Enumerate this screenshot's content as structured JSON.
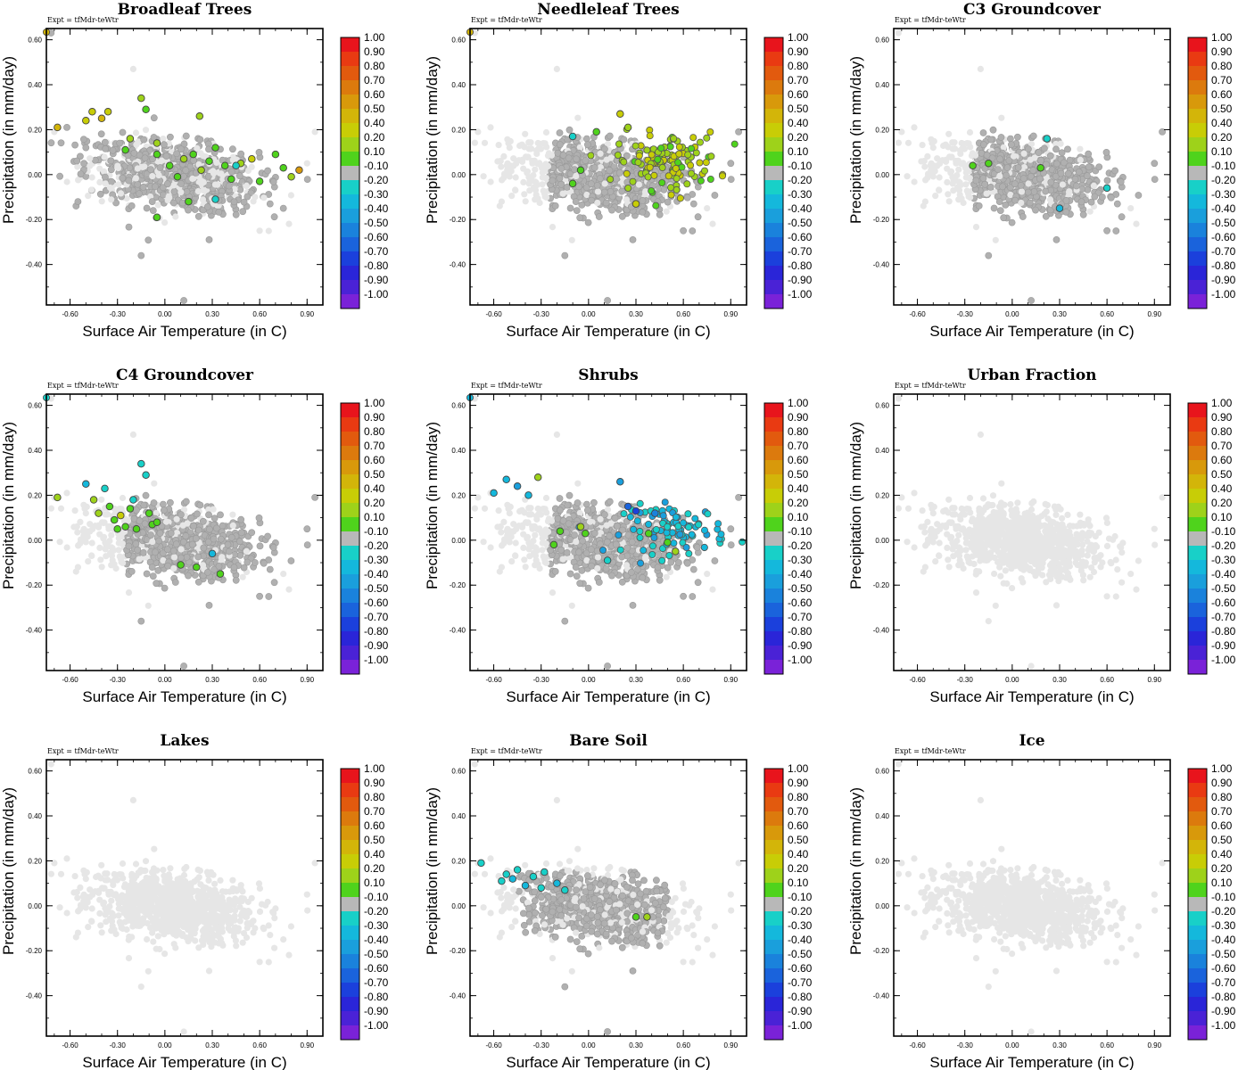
{
  "figure": {
    "experiment_label": "Expt = tfMdr-teWtr"
  },
  "colorbar": {
    "labels": [
      "1.00",
      "0.90",
      "0.80",
      "0.70",
      "0.60",
      "0.50",
      "0.40",
      "0.20",
      "0.10",
      "-0.10",
      "-0.20",
      "-0.30",
      "-0.40",
      "-0.50",
      "-0.60",
      "-0.70",
      "-0.80",
      "-0.90",
      "-1.00"
    ],
    "colors": [
      "#e8141c",
      "#e93a12",
      "#e25a0e",
      "#dc7a0d",
      "#d8990b",
      "#d3b509",
      "#c8cd06",
      "#9ed21a",
      "#4fd31c",
      "#b8b8b8",
      "#18d0c8",
      "#14b8dc",
      "#1a9fdc",
      "#1a82dc",
      "#1a63dc",
      "#1b40dc",
      "#2a25d8",
      "#4a22d6",
      "#7a22d8"
    ]
  },
  "chart_data": [
    {
      "type": "scatter",
      "title": "Broadleaf Trees",
      "xlabel": "Surface Air Temperature (in C)",
      "ylabel": "Precipitation (in mm/day)",
      "xlim": [
        -0.75,
        1.0
      ],
      "ylim": [
        -0.58,
        0.65
      ],
      "xticks": [
        "-0.60",
        "-0.30",
        "0.00",
        "0.30",
        "0.60",
        "0.90"
      ],
      "yticks": [
        "0.60",
        "0.40",
        "0.20",
        "0.00",
        "-0.20",
        "-0.40"
      ],
      "mode": "scattered",
      "extreme": false,
      "colored_points": [
        [
          -0.68,
          0.21,
          0.45
        ],
        [
          -0.5,
          0.24,
          0.4
        ],
        [
          -0.46,
          0.28,
          0.4
        ],
        [
          -0.4,
          0.25,
          0.45
        ],
        [
          -0.36,
          0.28,
          0.35
        ],
        [
          -0.22,
          0.16,
          0.3
        ],
        [
          -0.15,
          0.34,
          0.2
        ],
        [
          -0.12,
          0.29,
          0.15
        ],
        [
          -0.05,
          0.14,
          0.3
        ],
        [
          -0.05,
          0.09,
          0.15
        ],
        [
          0.03,
          0.04,
          0.15
        ],
        [
          0.08,
          -0.01,
          0.15
        ],
        [
          0.12,
          0.07,
          0.2
        ],
        [
          0.18,
          0.09,
          0.15
        ],
        [
          0.23,
          0.02,
          0.3
        ],
        [
          0.28,
          0.06,
          0.15
        ],
        [
          0.32,
          0.12,
          0.15
        ],
        [
          0.38,
          0.04,
          0.15
        ],
        [
          0.42,
          -0.02,
          0.15
        ],
        [
          0.48,
          0.05,
          0.25
        ],
        [
          0.55,
          0.07,
          0.35
        ],
        [
          0.6,
          -0.03,
          0.15
        ],
        [
          0.7,
          0.09,
          0.15
        ],
        [
          0.75,
          0.03,
          0.15
        ],
        [
          0.8,
          -0.01,
          0.2
        ],
        [
          0.85,
          0.02,
          0.6
        ],
        [
          0.32,
          -0.11,
          -0.25
        ],
        [
          0.45,
          0.04,
          -0.25
        ],
        [
          -0.05,
          -0.19,
          0.15
        ],
        [
          0.15,
          -0.12,
          0.15
        ],
        [
          0.22,
          0.26,
          0.2
        ],
        [
          -0.25,
          0.11,
          0.15
        ]
      ]
    },
    {
      "type": "scatter",
      "title": "Needleleaf Trees",
      "xlabel": "Surface Air Temperature (in C)",
      "ylabel": "Precipitation (in mm/day)",
      "xlim": [
        -0.75,
        1.0
      ],
      "ylim": [
        -0.58,
        0.65
      ],
      "xticks": [
        "-0.60",
        "-0.30",
        "0.00",
        "0.30",
        "0.60",
        "0.90"
      ],
      "yticks": [
        "0.60",
        "0.40",
        "0.20",
        "0.00",
        "-0.20",
        "-0.40"
      ],
      "mode": "main_gray",
      "extreme": false,
      "cluster": {
        "xc": 0.5,
        "yc": 0.06,
        "sx": 0.18,
        "sy": 0.07,
        "n": 120,
        "values": [
          0.15,
          0.2,
          0.25,
          0.3,
          0.35,
          0.4
        ]
      },
      "colored_points": [
        [
          -0.05,
          0.02,
          0.15
        ],
        [
          0.2,
          0.27,
          0.4
        ],
        [
          0.25,
          0.21,
          0.3
        ],
        [
          0.05,
          0.19,
          0.15
        ],
        [
          -0.1,
          -0.04,
          0.15
        ],
        [
          0.3,
          -0.13,
          0.35
        ],
        [
          -0.1,
          0.17,
          -0.2
        ]
      ]
    },
    {
      "type": "scatter",
      "title": "C3 Groundcover",
      "xlabel": "Surface Air Temperature (in C)",
      "ylabel": "Precipitation (in mm/day)",
      "xlim": [
        -0.75,
        1.0
      ],
      "ylim": [
        -0.58,
        0.65
      ],
      "xticks": [
        "-0.60",
        "-0.30",
        "0.00",
        "0.30",
        "0.60",
        "0.90"
      ],
      "yticks": [
        "0.60",
        "0.40",
        "0.20",
        "0.00",
        "-0.20",
        "-0.40"
      ],
      "mode": "main_gray",
      "extreme": false,
      "colored_points": [
        [
          -0.25,
          0.04,
          0.15
        ],
        [
          -0.15,
          0.05,
          0.15
        ],
        [
          0.18,
          0.03,
          0.15
        ],
        [
          0.22,
          0.16,
          -0.2
        ],
        [
          0.3,
          -0.15,
          -0.3
        ],
        [
          0.6,
          -0.06,
          -0.25
        ]
      ]
    },
    {
      "type": "scatter",
      "title": "C4 Groundcover",
      "xlabel": "Surface Air Temperature (in C)",
      "ylabel": "Precipitation (in mm/day)",
      "xlim": [
        -0.75,
        1.0
      ],
      "ylim": [
        -0.58,
        0.65
      ],
      "xticks": [
        "-0.60",
        "-0.30",
        "0.00",
        "0.30",
        "0.60",
        "0.90"
      ],
      "yticks": [
        "0.60",
        "0.40",
        "0.20",
        "0.00",
        "-0.20",
        "-0.40"
      ],
      "mode": "main_gray",
      "extreme": true,
      "extreme_value": -0.2,
      "colored_points": [
        [
          -0.68,
          0.19,
          0.2
        ],
        [
          -0.5,
          0.25,
          -0.3
        ],
        [
          -0.45,
          0.18,
          0.2
        ],
        [
          -0.42,
          0.12,
          0.3
        ],
        [
          -0.38,
          0.23,
          -0.25
        ],
        [
          -0.35,
          0.15,
          0.15
        ],
        [
          -0.32,
          0.09,
          0.15
        ],
        [
          -0.28,
          0.11,
          0.35
        ],
        [
          -0.25,
          0.06,
          0.15
        ],
        [
          -0.2,
          0.18,
          -0.2
        ],
        [
          -0.18,
          0.05,
          0.15
        ],
        [
          -0.15,
          0.34,
          -0.25
        ],
        [
          -0.12,
          0.29,
          -0.2
        ],
        [
          -0.1,
          0.12,
          0.15
        ],
        [
          -0.08,
          0.07,
          0.15
        ],
        [
          -0.05,
          0.08,
          0.15
        ],
        [
          0.1,
          -0.11,
          0.15
        ],
        [
          0.2,
          -0.12,
          0.15
        ],
        [
          0.3,
          -0.06,
          -0.3
        ],
        [
          0.35,
          -0.15,
          0.15
        ],
        [
          -0.3,
          0.05,
          0.15
        ],
        [
          -0.22,
          0.14,
          0.15
        ]
      ]
    },
    {
      "type": "scatter",
      "title": "Shrubs",
      "xlabel": "Surface Air Temperature (in C)",
      "ylabel": "Precipitation (in mm/day)",
      "xlim": [
        -0.75,
        1.0
      ],
      "ylim": [
        -0.58,
        0.65
      ],
      "xticks": [
        "-0.60",
        "-0.30",
        "0.00",
        "0.30",
        "0.60",
        "0.90"
      ],
      "yticks": [
        "0.60",
        "0.40",
        "0.20",
        "0.00",
        "-0.20",
        "-0.40"
      ],
      "mode": "main_gray",
      "extreme": true,
      "extreme_value": -0.35,
      "cluster": {
        "xc": 0.55,
        "yc": 0.05,
        "sx": 0.18,
        "sy": 0.06,
        "n": 90,
        "values": [
          -0.2,
          -0.25,
          -0.3,
          -0.35,
          -0.45
        ]
      },
      "colored_points": [
        [
          -0.6,
          0.21,
          -0.35
        ],
        [
          -0.52,
          0.27,
          -0.3
        ],
        [
          -0.45,
          0.24,
          -0.45
        ],
        [
          -0.38,
          0.2,
          -0.35
        ],
        [
          -0.32,
          0.28,
          0.2
        ],
        [
          -0.05,
          0.06,
          0.3
        ],
        [
          -0.02,
          0.03,
          0.15
        ],
        [
          -0.18,
          0.04,
          0.15
        ],
        [
          -0.22,
          -0.02,
          0.15
        ],
        [
          0.25,
          0.15,
          -0.6
        ],
        [
          0.3,
          0.13,
          -0.7
        ],
        [
          0.42,
          0.12,
          -0.5
        ],
        [
          0.38,
          0.03,
          0.15
        ],
        [
          0.5,
          -0.01,
          0.15
        ],
        [
          0.55,
          -0.05,
          0.3
        ],
        [
          0.2,
          0.26,
          -0.45
        ],
        [
          0.12,
          -0.09,
          -0.2
        ]
      ]
    },
    {
      "type": "scatter",
      "title": "Urban Fraction",
      "xlabel": "Surface Air Temperature (in C)",
      "ylabel": "Precipitation (in mm/day)",
      "xlim": [
        -0.75,
        1.0
      ],
      "ylim": [
        -0.58,
        0.65
      ],
      "xticks": [
        "-0.60",
        "-0.30",
        "0.00",
        "0.30",
        "0.60",
        "0.90"
      ],
      "yticks": [
        "0.60",
        "0.40",
        "0.20",
        "0.00",
        "-0.20",
        "-0.40"
      ],
      "mode": "light",
      "extreme": false,
      "colored_points": []
    },
    {
      "type": "scatter",
      "title": "Lakes",
      "xlabel": "Surface Air Temperature (in C)",
      "ylabel": "Precipitation (in mm/day)",
      "xlim": [
        -0.75,
        1.0
      ],
      "ylim": [
        -0.58,
        0.65
      ],
      "xticks": [
        "-0.60",
        "-0.30",
        "0.00",
        "0.30",
        "0.60",
        "0.90"
      ],
      "yticks": [
        "0.60",
        "0.40",
        "0.20",
        "0.00",
        "-0.20",
        "-0.40"
      ],
      "mode": "light",
      "extreme": false,
      "colored_points": []
    },
    {
      "type": "scatter",
      "title": "Bare Soil",
      "xlabel": "Surface Air Temperature (in C)",
      "ylabel": "Precipitation (in mm/day)",
      "xlim": [
        -0.75,
        1.0
      ],
      "ylim": [
        -0.58,
        0.65
      ],
      "xticks": [
        "-0.60",
        "-0.30",
        "0.00",
        "0.30",
        "0.60",
        "0.90"
      ],
      "yticks": [
        "0.60",
        "0.40",
        "0.20",
        "0.00",
        "-0.20",
        "-0.40"
      ],
      "mode": "bare",
      "extreme": false,
      "colored_points": [
        [
          -0.68,
          0.19,
          -0.2
        ],
        [
          -0.55,
          0.11,
          -0.25
        ],
        [
          -0.52,
          0.14,
          -0.2
        ],
        [
          -0.48,
          0.12,
          -0.3
        ],
        [
          -0.45,
          0.16,
          -0.25
        ],
        [
          -0.4,
          0.09,
          -0.3
        ],
        [
          -0.35,
          0.13,
          -0.2
        ],
        [
          -0.3,
          0.08,
          -0.25
        ],
        [
          -0.2,
          0.1,
          -0.3
        ],
        [
          -0.15,
          0.07,
          -0.25
        ],
        [
          -0.28,
          0.15,
          -0.2
        ],
        [
          0.3,
          -0.05,
          0.15
        ],
        [
          0.37,
          -0.05,
          0.3
        ]
      ]
    },
    {
      "type": "scatter",
      "title": "Ice",
      "xlabel": "Surface Air Temperature (in C)",
      "ylabel": "Precipitation (in mm/day)",
      "xlim": [
        -0.75,
        1.0
      ],
      "ylim": [
        -0.58,
        0.65
      ],
      "xticks": [
        "-0.60",
        "-0.30",
        "0.00",
        "0.30",
        "0.60",
        "0.90"
      ],
      "yticks": [
        "0.60",
        "0.40",
        "0.20",
        "0.00",
        "-0.20",
        "-0.40"
      ],
      "mode": "light",
      "extreme": false,
      "colored_points": []
    }
  ]
}
